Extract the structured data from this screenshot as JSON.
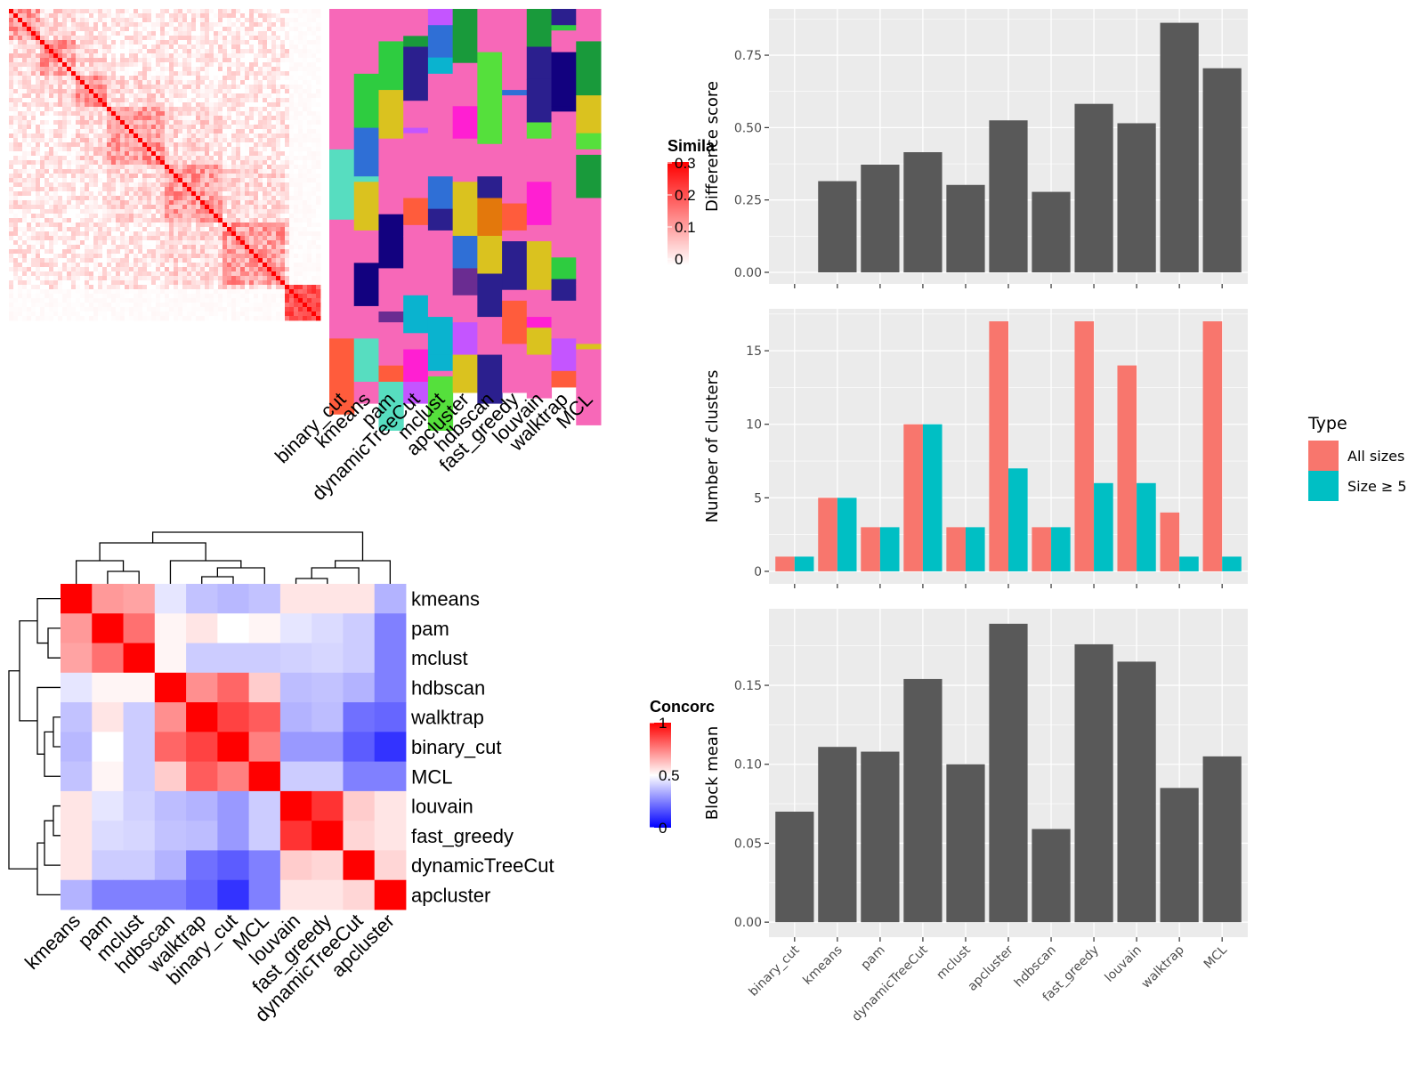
{
  "methods_order": [
    "binary_cut",
    "kmeans",
    "pam",
    "dynamicTreeCut",
    "mclust",
    "apcluster",
    "hdbscan",
    "fast_greedy",
    "louvain",
    "walktrap",
    "MCL"
  ],
  "colors": {
    "bar_dark": "#595959",
    "all_sizes": "#F8766D",
    "size_ge5": "#00BFC4",
    "panel_bg": "#EBEBEB",
    "grid": "#FFFFFF",
    "similarity_high": "#FF0000",
    "concordance_high": "#FF0000",
    "concordance_mid": "#FFFFFF",
    "concordance_low": "#0000FF",
    "cluster_background": "#F768B8"
  },
  "similarity_legend": {
    "title": "Simila",
    "ticks": [
      "0.3",
      "0.2",
      "0.1",
      "0"
    ]
  },
  "concordance_legend": {
    "title": "Concorc",
    "ticks": [
      "1",
      "0.5",
      "0"
    ]
  },
  "chart_data": [
    {
      "type": "heatmap",
      "id": "similarity_matrix",
      "size": 70,
      "range": [
        0,
        0.3
      ],
      "blocks": [
        [
          0,
          7
        ],
        [
          7,
          15
        ],
        [
          15,
          22
        ],
        [
          22,
          35
        ],
        [
          35,
          48
        ],
        [
          48,
          62
        ],
        [
          62,
          70
        ]
      ]
    },
    {
      "type": "heatmap",
      "id": "cluster_assignment",
      "columns": [
        "binary_cut",
        "kmeans",
        "pam",
        "dynamicTreeCut",
        "mclust",
        "apcluster",
        "hdbscan",
        "fast_greedy",
        "louvain",
        "walktrap",
        "MCL"
      ]
    },
    {
      "type": "heatmap",
      "id": "concordance",
      "rows": [
        "kmeans",
        "pam",
        "mclust",
        "hdbscan",
        "walktrap",
        "binary_cut",
        "MCL",
        "louvain",
        "fast_greedy",
        "dynamicTreeCut",
        "apcluster"
      ],
      "columns": [
        "kmeans",
        "pam",
        "mclust",
        "hdbscan",
        "walktrap",
        "binary_cut",
        "MCL",
        "louvain",
        "fast_greedy",
        "dynamicTreeCut",
        "apcluster"
      ],
      "range": [
        0,
        1
      ],
      "values": [
        [
          1.0,
          0.7,
          0.68,
          0.45,
          0.38,
          0.36,
          0.38,
          0.55,
          0.55,
          0.55,
          0.35
        ],
        [
          0.7,
          1.0,
          0.78,
          0.52,
          0.55,
          0.5,
          0.52,
          0.45,
          0.43,
          0.4,
          0.25
        ],
        [
          0.68,
          0.78,
          1.0,
          0.52,
          0.4,
          0.4,
          0.4,
          0.41,
          0.42,
          0.4,
          0.25
        ],
        [
          0.45,
          0.52,
          0.52,
          1.0,
          0.72,
          0.8,
          0.6,
          0.37,
          0.38,
          0.35,
          0.25
        ],
        [
          0.38,
          0.55,
          0.4,
          0.72,
          1.0,
          0.87,
          0.82,
          0.35,
          0.37,
          0.22,
          0.2
        ],
        [
          0.36,
          0.5,
          0.4,
          0.8,
          0.87,
          1.0,
          0.75,
          0.3,
          0.3,
          0.18,
          0.1
        ],
        [
          0.38,
          0.52,
          0.4,
          0.6,
          0.82,
          0.75,
          1.0,
          0.4,
          0.4,
          0.25,
          0.25
        ],
        [
          0.55,
          0.45,
          0.41,
          0.37,
          0.35,
          0.3,
          0.4,
          1.0,
          0.9,
          0.6,
          0.55
        ],
        [
          0.55,
          0.43,
          0.42,
          0.38,
          0.37,
          0.3,
          0.4,
          0.9,
          1.0,
          0.58,
          0.55
        ],
        [
          0.55,
          0.4,
          0.4,
          0.35,
          0.22,
          0.18,
          0.25,
          0.6,
          0.58,
          1.0,
          0.58
        ],
        [
          0.35,
          0.25,
          0.25,
          0.25,
          0.2,
          0.1,
          0.25,
          0.55,
          0.55,
          0.58,
          1.0
        ]
      ]
    },
    {
      "type": "bar",
      "id": "difference_score",
      "categories": [
        "binary_cut",
        "kmeans",
        "pam",
        "dynamicTreeCut",
        "mclust",
        "apcluster",
        "hdbscan",
        "fast_greedy",
        "louvain",
        "walktrap",
        "MCL"
      ],
      "values": [
        0,
        0.315,
        0.372,
        0.415,
        0.302,
        0.525,
        0.278,
        0.582,
        0.515,
        0.862,
        0.705
      ],
      "ylabel": "Difference score",
      "ylim": [
        -0.04,
        0.91
      ],
      "yticks": [
        0,
        0.25,
        0.5,
        0.75
      ],
      "ytick_labels": [
        "0.00",
        "0.25",
        "0.50",
        "0.75"
      ]
    },
    {
      "type": "bar",
      "id": "number_of_clusters",
      "categories": [
        "binary_cut",
        "kmeans",
        "pam",
        "dynamicTreeCut",
        "mclust",
        "apcluster",
        "hdbscan",
        "fast_greedy",
        "louvain",
        "walktrap",
        "MCL"
      ],
      "series": [
        {
          "name": "All sizes",
          "values": [
            1,
            5,
            3,
            10,
            3,
            17,
            3,
            17,
            14,
            4,
            17
          ]
        },
        {
          "name": "Size ≥ 5",
          "values": [
            1,
            5,
            3,
            10,
            3,
            7,
            3,
            6,
            6,
            1,
            1
          ]
        }
      ],
      "ylabel": "Number of clusters",
      "ylim": [
        -0.85,
        17.85
      ],
      "yticks": [
        0,
        5,
        10,
        15
      ],
      "ytick_labels": [
        "0",
        "5",
        "10",
        "15"
      ],
      "legend_title": "Type"
    },
    {
      "type": "bar",
      "id": "block_mean",
      "categories": [
        "binary_cut",
        "kmeans",
        "pam",
        "dynamicTreeCut",
        "mclust",
        "apcluster",
        "hdbscan",
        "fast_greedy",
        "louvain",
        "walktrap",
        "MCL"
      ],
      "values": [
        0.07,
        0.111,
        0.108,
        0.154,
        0.1,
        0.189,
        0.059,
        0.176,
        0.165,
        0.085,
        0.105
      ],
      "ylabel": "Block mean",
      "ylim": [
        -0.0095,
        0.1985
      ],
      "yticks": [
        0,
        0.05,
        0.1,
        0.15
      ],
      "ytick_labels": [
        "0.00",
        "0.05",
        "0.10",
        "0.15"
      ]
    }
  ]
}
